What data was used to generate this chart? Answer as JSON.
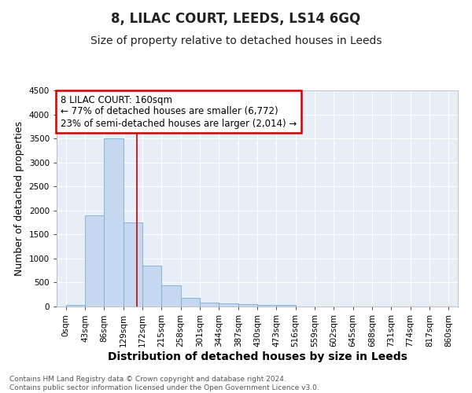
{
  "title": "8, LILAC COURT, LEEDS, LS14 6GQ",
  "subtitle": "Size of property relative to detached houses in Leeds",
  "xlabel": "Distribution of detached houses by size in Leeds",
  "ylabel": "Number of detached properties",
  "bar_color": "#c5d8f0",
  "bar_edge_color": "#7aadd4",
  "background_color": "#ffffff",
  "plot_bg_color": "#e8eef8",
  "grid_color": "#ffffff",
  "annotation_text": "8 LILAC COURT: 160sqm\n← 77% of detached houses are smaller (6,772)\n23% of semi-detached houses are larger (2,014) →",
  "annotation_box_color": "#ffffff",
  "annotation_box_edge": "#cc0000",
  "red_line_x": 160,
  "red_line_color": "#cc0000",
  "bin_edges": [
    0,
    43,
    86,
    129,
    172,
    215,
    258,
    301,
    344,
    387,
    430,
    473,
    516,
    559,
    602,
    645,
    688,
    731,
    774,
    817,
    860
  ],
  "bar_heights": [
    30,
    1900,
    3500,
    1750,
    850,
    450,
    175,
    90,
    65,
    50,
    35,
    35,
    0,
    0,
    0,
    0,
    0,
    0,
    0,
    0
  ],
  "ylim": [
    0,
    4500
  ],
  "xlim_min": -21,
  "xlim_max": 881,
  "yticks": [
    0,
    500,
    1000,
    1500,
    2000,
    2500,
    3000,
    3500,
    4000,
    4500
  ],
  "xtick_labels": [
    "0sqm",
    "43sqm",
    "86sqm",
    "129sqm",
    "172sqm",
    "215sqm",
    "258sqm",
    "301sqm",
    "344sqm",
    "387sqm",
    "430sqm",
    "473sqm",
    "516sqm",
    "559sqm",
    "602sqm",
    "645sqm",
    "688sqm",
    "731sqm",
    "774sqm",
    "817sqm",
    "860sqm"
  ],
  "footer_text": "Contains HM Land Registry data © Crown copyright and database right 2024.\nContains public sector information licensed under the Open Government Licence v3.0.",
  "title_fontsize": 12,
  "subtitle_fontsize": 10,
  "xlabel_fontsize": 10,
  "ylabel_fontsize": 9,
  "tick_fontsize": 7.5,
  "annotation_fontsize": 8.5,
  "footer_fontsize": 6.5
}
